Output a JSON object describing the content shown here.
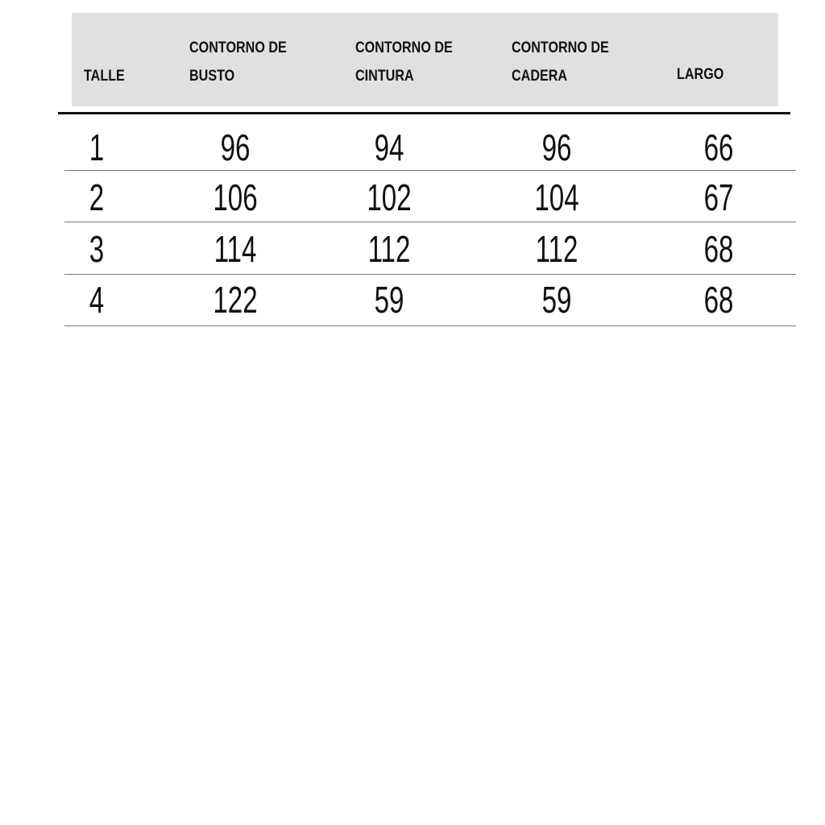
{
  "table": {
    "headers": [
      "TALLE",
      "CONTORNO DE BUSTO",
      "CONTORNO DE CINTURA",
      "CONTORNO DE CADERA",
      "LARGO"
    ],
    "rows": [
      [
        1,
        96,
        94,
        96,
        66
      ],
      [
        2,
        106,
        102,
        104,
        67
      ],
      [
        3,
        114,
        112,
        112,
        68
      ],
      [
        4,
        122,
        59,
        59,
        68
      ]
    ]
  }
}
